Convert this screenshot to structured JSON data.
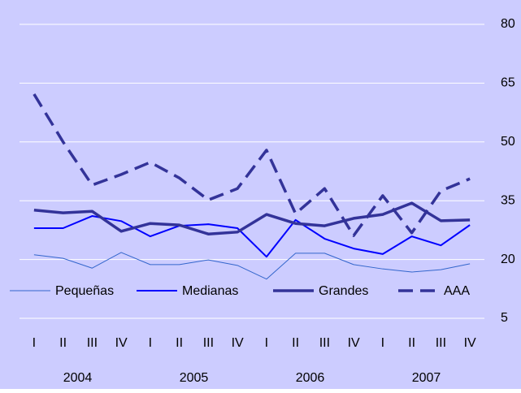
{
  "chart_data": {
    "type": "line",
    "categories": [
      "I",
      "II",
      "III",
      "IV",
      "I",
      "II",
      "III",
      "IV",
      "I",
      "II",
      "III",
      "IV",
      "I",
      "II",
      "III",
      "IV"
    ],
    "groups": [
      "2004",
      "2005",
      "2006",
      "2007"
    ],
    "series": [
      {
        "name": "Pequeñas",
        "color": "#3366cc",
        "width": 1,
        "dash": false,
        "values": [
          21.2,
          20.3,
          17.8,
          21.8,
          18.7,
          18.7,
          19.9,
          18.5,
          15.0,
          21.6,
          21.6,
          18.7,
          17.6,
          16.8,
          17.4,
          18.9
        ]
      },
      {
        "name": "Medianas",
        "color": "#0000ff",
        "width": 2,
        "dash": false,
        "values": [
          28.0,
          28.0,
          31.1,
          29.8,
          25.9,
          28.6,
          29.0,
          28.0,
          20.7,
          30.1,
          25.3,
          22.8,
          21.4,
          25.9,
          23.6,
          28.8
        ]
      },
      {
        "name": "Grandes",
        "color": "#333399",
        "width": 3.5,
        "dash": false,
        "values": [
          32.6,
          31.9,
          32.3,
          27.2,
          29.2,
          28.8,
          26.5,
          27.0,
          31.5,
          29.2,
          28.6,
          30.5,
          31.5,
          34.4,
          29.9,
          30.1
        ]
      },
      {
        "name": "AAA",
        "color": "#333399",
        "width": 3.5,
        "dash": true,
        "values": [
          62.2,
          50.0,
          39.0,
          41.7,
          44.8,
          40.8,
          35.2,
          38.1,
          47.9,
          31.7,
          38.1,
          26.1,
          36.3,
          26.8,
          37.5,
          40.6
        ]
      }
    ],
    "ylim": [
      5,
      80
    ],
    "yticks": [
      5,
      20,
      35,
      50,
      65,
      80
    ],
    "grid": true,
    "background": "#ccccff"
  }
}
